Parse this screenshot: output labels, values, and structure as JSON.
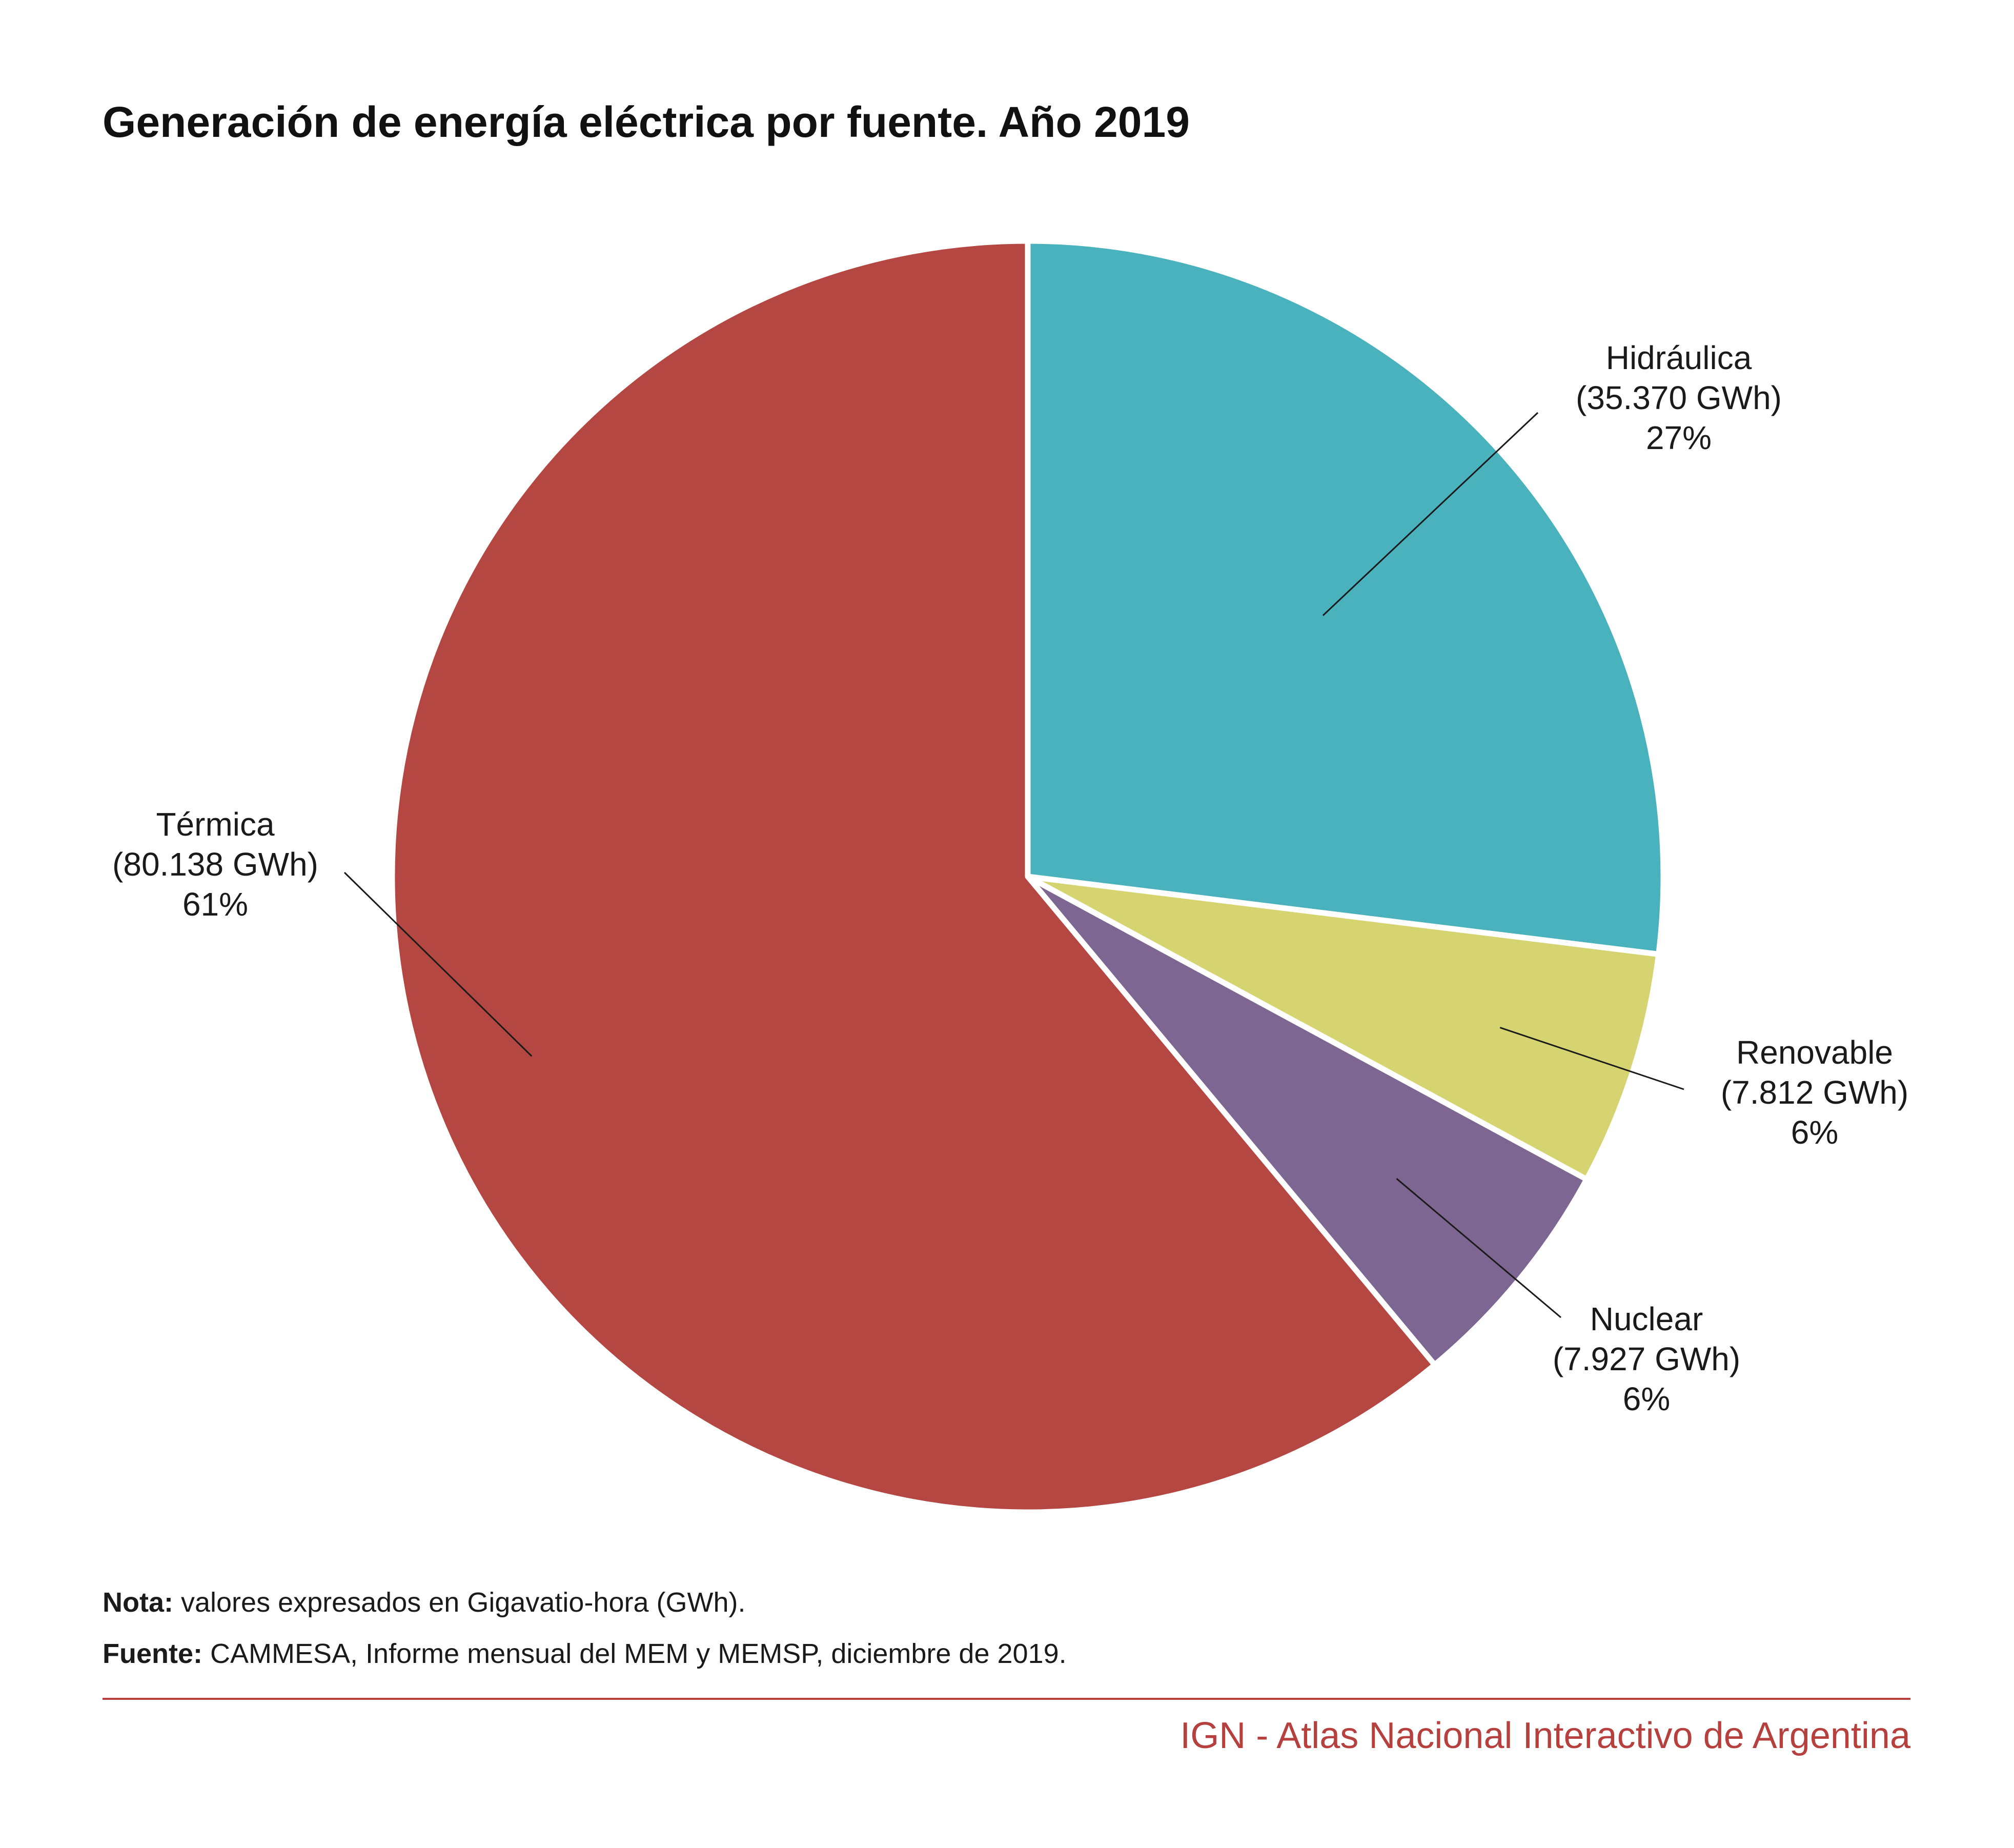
{
  "title": "Generación de energía eléctrica por fuente. Año 2019",
  "chart_data": {
    "type": "pie",
    "title": "Generación de energía eléctrica por fuente. Año 2019",
    "unit": "GWh",
    "slices": [
      {
        "name": "Hidráulica",
        "value": 35370,
        "value_label": "(35.370 GWh)",
        "percent_label": "27%",
        "color": "#49b2bd"
      },
      {
        "name": "Renovable",
        "value": 7812,
        "value_label": "(7.812 GWh)",
        "percent_label": "6%",
        "color": "#d5d471"
      },
      {
        "name": "Nuclear",
        "value": 7927,
        "value_label": "(7.927 GWh)",
        "percent_label": "6%",
        "color": "#7d6691"
      },
      {
        "name": "Térmica",
        "value": 80138,
        "value_label": "(80.138 GWh)",
        "percent_label": "61%",
        "color": "#b54742"
      }
    ]
  },
  "notes": {
    "nota_label": "Nota:",
    "nota_text": " valores expresados en Gigavatio-hora (GWh).",
    "fuente_label": "Fuente:",
    "fuente_text": " CAMMESA, Informe mensual del MEM y MEMSP, diciembre de 2019."
  },
  "credit": "IGN - Atlas Nacional Interactivo de Argentina",
  "colors": {
    "accent": "#b5403d",
    "separator": "#ffffff"
  }
}
